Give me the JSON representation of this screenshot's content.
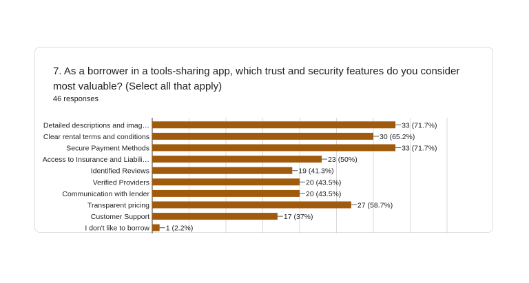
{
  "question": {
    "title": "7. As a borrower in a tools-sharing app, which trust and security features do you consider most valuable?  (Select all that apply)",
    "responses": "46 responses"
  },
  "colors": {
    "bar": "#a05a0c",
    "grid": "#d9d9d9",
    "axis": "#333333",
    "text": "#202124"
  },
  "chart_data": {
    "type": "bar",
    "orientation": "horizontal",
    "title": "",
    "xlabel": "",
    "ylabel": "",
    "xlim": [
      0,
      40
    ],
    "grid": true,
    "categories": [
      "Detailed descriptions and imag…",
      "Clear rental terms and conditions",
      "Secure Payment Methods",
      "Access to Insurance and Liabili…",
      "Identified Reviews",
      "Verified Providers",
      "Communication with lender",
      "Transparent pricing",
      "Customer Support",
      "I don't like to borrow"
    ],
    "values": [
      33,
      30,
      33,
      23,
      19,
      20,
      20,
      27,
      17,
      1
    ],
    "labels": [
      "33 (71.7%)",
      "30 (65.2%)",
      "33 (71.7%)",
      "23 (50%)",
      "19 (41.3%)",
      "20 (43.5%)",
      "20 (43.5%)",
      "27 (58.7%)",
      "17 (37%)",
      "1 (2.2%)"
    ]
  }
}
